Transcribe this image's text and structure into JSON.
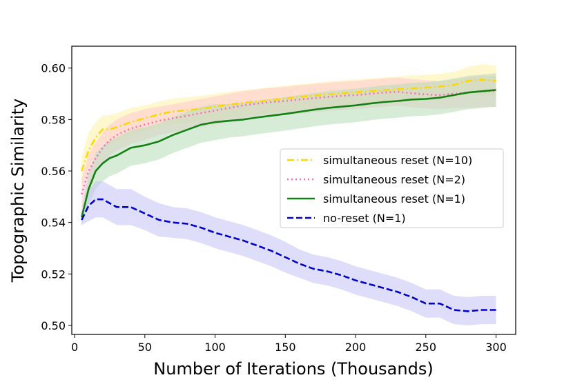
{
  "chart_data": {
    "type": "line",
    "title": "",
    "xlabel": "Number of Iterations (Thousands)",
    "ylabel": "Topographic Similarity",
    "xlim": [
      -2,
      314
    ],
    "ylim": [
      0.4965,
      0.6085
    ],
    "xticks": [
      0,
      50,
      100,
      150,
      200,
      250,
      300
    ],
    "xtick_labels": [
      "0",
      "50",
      "100",
      "150",
      "200",
      "250",
      "300"
    ],
    "yticks": [
      0.5,
      0.52,
      0.54,
      0.56,
      0.58,
      0.6
    ],
    "ytick_labels": [
      "0.50",
      "0.52",
      "0.54",
      "0.56",
      "0.58",
      "0.60"
    ],
    "grid": false,
    "legend_position": "center-right",
    "x": [
      5,
      10,
      15,
      20,
      25,
      30,
      40,
      50,
      60,
      70,
      80,
      90,
      100,
      110,
      120,
      130,
      140,
      150,
      160,
      170,
      180,
      190,
      200,
      210,
      220,
      230,
      240,
      250,
      260,
      270,
      280,
      290,
      300
    ],
    "series": [
      {
        "name": "simultaneous reset (N=10)",
        "color": "#ffd700",
        "style": "dashdot",
        "band_color": "#fff3a8",
        "values": [
          0.56,
          0.568,
          0.573,
          0.5762,
          0.5762,
          0.577,
          0.579,
          0.5805,
          0.582,
          0.5832,
          0.5836,
          0.5842,
          0.585,
          0.5858,
          0.5865,
          0.587,
          0.5876,
          0.5882,
          0.5888,
          0.5893,
          0.5898,
          0.5902,
          0.5906,
          0.591,
          0.5914,
          0.5918,
          0.5921,
          0.5924,
          0.5928,
          0.5935,
          0.595,
          0.5955,
          0.595
        ],
        "band": [
          0.006,
          0.007,
          0.006,
          0.0055,
          0.0055,
          0.0055,
          0.0055,
          0.005,
          0.005,
          0.005,
          0.005,
          0.005,
          0.005,
          0.005,
          0.005,
          0.005,
          0.005,
          0.005,
          0.005,
          0.005,
          0.005,
          0.005,
          0.005,
          0.005,
          0.005,
          0.005,
          0.005,
          0.005,
          0.005,
          0.005,
          0.0055,
          0.006,
          0.006
        ]
      },
      {
        "name": "simultaneous reset (N=2)",
        "color": "#ff69b4",
        "style": "dotted",
        "band_color": "#ffc8d2",
        "values": [
          0.551,
          0.56,
          0.565,
          0.569,
          0.572,
          0.574,
          0.5765,
          0.578,
          0.5795,
          0.5805,
          0.5815,
          0.5825,
          0.5835,
          0.5845,
          0.5855,
          0.5862,
          0.5868,
          0.5872,
          0.5878,
          0.5883,
          0.5888,
          0.5892,
          0.5895,
          0.59,
          0.5905,
          0.5908,
          0.5902,
          0.5898,
          0.5895,
          0.59,
          0.5905,
          0.591,
          0.591
        ],
        "band": [
          0.006,
          0.0065,
          0.006,
          0.006,
          0.006,
          0.006,
          0.006,
          0.006,
          0.0055,
          0.0055,
          0.0055,
          0.0055,
          0.0055,
          0.0055,
          0.0055,
          0.0055,
          0.0055,
          0.0055,
          0.0055,
          0.0055,
          0.0055,
          0.0055,
          0.0055,
          0.0055,
          0.0055,
          0.0055,
          0.0055,
          0.0055,
          0.0055,
          0.0055,
          0.006,
          0.006,
          0.006
        ]
      },
      {
        "name": "simultaneous reset (N=1)",
        "color": "#138013",
        "style": "solid",
        "band_color": "#b6dcb6",
        "values": [
          0.542,
          0.553,
          0.56,
          0.563,
          0.565,
          0.566,
          0.569,
          0.57,
          0.5715,
          0.574,
          0.576,
          0.578,
          0.579,
          0.5795,
          0.58,
          0.5808,
          0.5815,
          0.5822,
          0.583,
          0.5838,
          0.5845,
          0.585,
          0.5855,
          0.5862,
          0.5868,
          0.5872,
          0.5878,
          0.588,
          0.5885,
          0.5895,
          0.5905,
          0.591,
          0.5915
        ],
        "band": [
          0.003,
          0.006,
          0.007,
          0.007,
          0.007,
          0.007,
          0.007,
          0.007,
          0.007,
          0.007,
          0.007,
          0.007,
          0.007,
          0.0065,
          0.0065,
          0.0065,
          0.0065,
          0.0065,
          0.0065,
          0.0065,
          0.0065,
          0.0065,
          0.0065,
          0.0065,
          0.0065,
          0.0065,
          0.0065,
          0.0065,
          0.0065,
          0.0065,
          0.0065,
          0.0065,
          0.0065
        ]
      },
      {
        "name": "no-reset (N=1)",
        "color": "#0000cd",
        "style": "dashed",
        "band_color": "#c2c2f7",
        "values": [
          0.541,
          0.5465,
          0.549,
          0.549,
          0.5475,
          0.546,
          0.546,
          0.5435,
          0.541,
          0.54,
          0.5395,
          0.538,
          0.536,
          0.5345,
          0.533,
          0.531,
          0.529,
          0.5265,
          0.524,
          0.522,
          0.521,
          0.5195,
          0.5175,
          0.516,
          0.5145,
          0.513,
          0.511,
          0.5085,
          0.5085,
          0.506,
          0.5055,
          0.506,
          0.506
        ],
        "band": [
          0.002,
          0.006,
          0.007,
          0.007,
          0.007,
          0.007,
          0.007,
          0.0065,
          0.0065,
          0.006,
          0.006,
          0.006,
          0.006,
          0.006,
          0.006,
          0.006,
          0.006,
          0.006,
          0.0055,
          0.0055,
          0.0055,
          0.0055,
          0.0055,
          0.0055,
          0.0055,
          0.0055,
          0.0055,
          0.0055,
          0.0055,
          0.0055,
          0.0055,
          0.0055,
          0.0055
        ]
      }
    ]
  }
}
